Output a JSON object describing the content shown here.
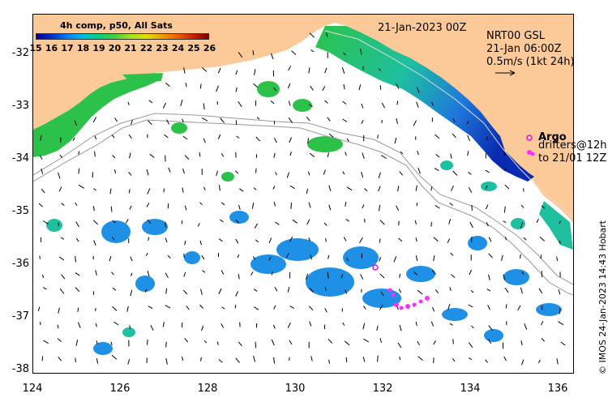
{
  "map": {
    "date_label": "21-Jan-2023 00Z",
    "legend": {
      "title": "4h comp, p50, All Sats",
      "ticks": [
        "15",
        "16",
        "17",
        "18",
        "19",
        "20",
        "21",
        "22",
        "23",
        "24",
        "25",
        "26"
      ]
    },
    "current_info": {
      "line1": "NRT00 GSL",
      "line2": "21-Jan 06:00Z",
      "line3": "0.5m/s (1kt 24h)"
    },
    "argo_label": "Argo",
    "drifters_line1": "drifters@12h",
    "drifters_line2": "to 21/01 12Z",
    "credit": "© IMOS 24-Jan-2023 14:43 Hobart",
    "x_ticks": [
      "124",
      "126",
      "128",
      "130",
      "132",
      "134",
      "136"
    ],
    "y_ticks": [
      "-32",
      "-33",
      "-34",
      "-35",
      "-36",
      "-37",
      "-38"
    ],
    "colors": {
      "land": "#fcca98",
      "sst_cool": "#1e90e6",
      "sst_green": "#2cc24a",
      "sst_teal": "#1ec0a0",
      "sst_dark": "#0a2ab0",
      "argo": "#e010e0",
      "drifter": "#ff30ff"
    }
  }
}
